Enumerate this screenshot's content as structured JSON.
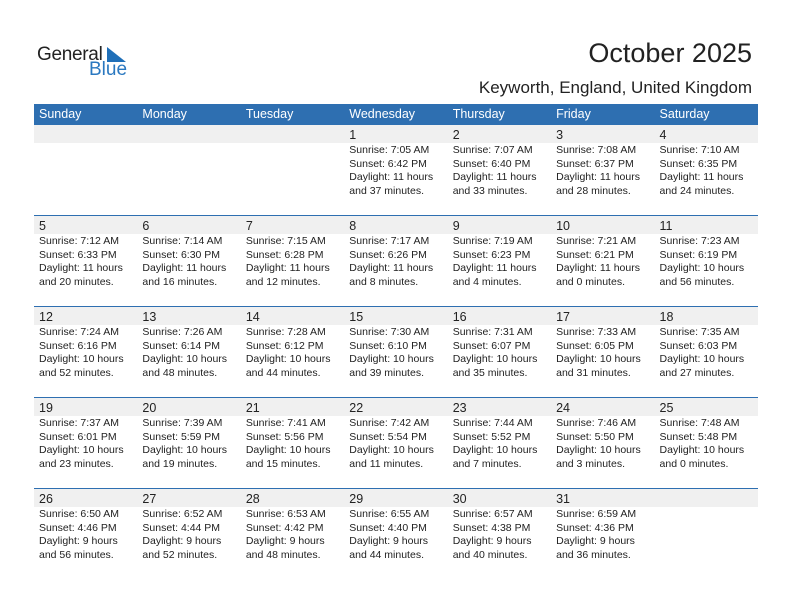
{
  "logo": {
    "general": "General",
    "blue": "Blue"
  },
  "title": "October 2025",
  "location": "Keyworth, England, United Kingdom",
  "weekdays": [
    "Sunday",
    "Monday",
    "Tuesday",
    "Wednesday",
    "Thursday",
    "Friday",
    "Saturday"
  ],
  "colors": {
    "header": "#2e6fb1",
    "strip": "#f0f0f0"
  },
  "weeks": [
    [
      null,
      null,
      null,
      {
        "day": "1",
        "sunrise": "Sunrise: 7:05 AM",
        "sunset": "Sunset: 6:42 PM",
        "daylight": "Daylight: 11 hours",
        "minutes": "and 37 minutes."
      },
      {
        "day": "2",
        "sunrise": "Sunrise: 7:07 AM",
        "sunset": "Sunset: 6:40 PM",
        "daylight": "Daylight: 11 hours",
        "minutes": "and 33 minutes."
      },
      {
        "day": "3",
        "sunrise": "Sunrise: 7:08 AM",
        "sunset": "Sunset: 6:37 PM",
        "daylight": "Daylight: 11 hours",
        "minutes": "and 28 minutes."
      },
      {
        "day": "4",
        "sunrise": "Sunrise: 7:10 AM",
        "sunset": "Sunset: 6:35 PM",
        "daylight": "Daylight: 11 hours",
        "minutes": "and 24 minutes."
      }
    ],
    [
      {
        "day": "5",
        "sunrise": "Sunrise: 7:12 AM",
        "sunset": "Sunset: 6:33 PM",
        "daylight": "Daylight: 11 hours",
        "minutes": "and 20 minutes."
      },
      {
        "day": "6",
        "sunrise": "Sunrise: 7:14 AM",
        "sunset": "Sunset: 6:30 PM",
        "daylight": "Daylight: 11 hours",
        "minutes": "and 16 minutes."
      },
      {
        "day": "7",
        "sunrise": "Sunrise: 7:15 AM",
        "sunset": "Sunset: 6:28 PM",
        "daylight": "Daylight: 11 hours",
        "minutes": "and 12 minutes."
      },
      {
        "day": "8",
        "sunrise": "Sunrise: 7:17 AM",
        "sunset": "Sunset: 6:26 PM",
        "daylight": "Daylight: 11 hours",
        "minutes": "and 8 minutes."
      },
      {
        "day": "9",
        "sunrise": "Sunrise: 7:19 AM",
        "sunset": "Sunset: 6:23 PM",
        "daylight": "Daylight: 11 hours",
        "minutes": "and 4 minutes."
      },
      {
        "day": "10",
        "sunrise": "Sunrise: 7:21 AM",
        "sunset": "Sunset: 6:21 PM",
        "daylight": "Daylight: 11 hours",
        "minutes": "and 0 minutes."
      },
      {
        "day": "11",
        "sunrise": "Sunrise: 7:23 AM",
        "sunset": "Sunset: 6:19 PM",
        "daylight": "Daylight: 10 hours",
        "minutes": "and 56 minutes."
      }
    ],
    [
      {
        "day": "12",
        "sunrise": "Sunrise: 7:24 AM",
        "sunset": "Sunset: 6:16 PM",
        "daylight": "Daylight: 10 hours",
        "minutes": "and 52 minutes."
      },
      {
        "day": "13",
        "sunrise": "Sunrise: 7:26 AM",
        "sunset": "Sunset: 6:14 PM",
        "daylight": "Daylight: 10 hours",
        "minutes": "and 48 minutes."
      },
      {
        "day": "14",
        "sunrise": "Sunrise: 7:28 AM",
        "sunset": "Sunset: 6:12 PM",
        "daylight": "Daylight: 10 hours",
        "minutes": "and 44 minutes."
      },
      {
        "day": "15",
        "sunrise": "Sunrise: 7:30 AM",
        "sunset": "Sunset: 6:10 PM",
        "daylight": "Daylight: 10 hours",
        "minutes": "and 39 minutes."
      },
      {
        "day": "16",
        "sunrise": "Sunrise: 7:31 AM",
        "sunset": "Sunset: 6:07 PM",
        "daylight": "Daylight: 10 hours",
        "minutes": "and 35 minutes."
      },
      {
        "day": "17",
        "sunrise": "Sunrise: 7:33 AM",
        "sunset": "Sunset: 6:05 PM",
        "daylight": "Daylight: 10 hours",
        "minutes": "and 31 minutes."
      },
      {
        "day": "18",
        "sunrise": "Sunrise: 7:35 AM",
        "sunset": "Sunset: 6:03 PM",
        "daylight": "Daylight: 10 hours",
        "minutes": "and 27 minutes."
      }
    ],
    [
      {
        "day": "19",
        "sunrise": "Sunrise: 7:37 AM",
        "sunset": "Sunset: 6:01 PM",
        "daylight": "Daylight: 10 hours",
        "minutes": "and 23 minutes."
      },
      {
        "day": "20",
        "sunrise": "Sunrise: 7:39 AM",
        "sunset": "Sunset: 5:59 PM",
        "daylight": "Daylight: 10 hours",
        "minutes": "and 19 minutes."
      },
      {
        "day": "21",
        "sunrise": "Sunrise: 7:41 AM",
        "sunset": "Sunset: 5:56 PM",
        "daylight": "Daylight: 10 hours",
        "minutes": "and 15 minutes."
      },
      {
        "day": "22",
        "sunrise": "Sunrise: 7:42 AM",
        "sunset": "Sunset: 5:54 PM",
        "daylight": "Daylight: 10 hours",
        "minutes": "and 11 minutes."
      },
      {
        "day": "23",
        "sunrise": "Sunrise: 7:44 AM",
        "sunset": "Sunset: 5:52 PM",
        "daylight": "Daylight: 10 hours",
        "minutes": "and 7 minutes."
      },
      {
        "day": "24",
        "sunrise": "Sunrise: 7:46 AM",
        "sunset": "Sunset: 5:50 PM",
        "daylight": "Daylight: 10 hours",
        "minutes": "and 3 minutes."
      },
      {
        "day": "25",
        "sunrise": "Sunrise: 7:48 AM",
        "sunset": "Sunset: 5:48 PM",
        "daylight": "Daylight: 10 hours",
        "minutes": "and 0 minutes."
      }
    ],
    [
      {
        "day": "26",
        "sunrise": "Sunrise: 6:50 AM",
        "sunset": "Sunset: 4:46 PM",
        "daylight": "Daylight: 9 hours",
        "minutes": "and 56 minutes."
      },
      {
        "day": "27",
        "sunrise": "Sunrise: 6:52 AM",
        "sunset": "Sunset: 4:44 PM",
        "daylight": "Daylight: 9 hours",
        "minutes": "and 52 minutes."
      },
      {
        "day": "28",
        "sunrise": "Sunrise: 6:53 AM",
        "sunset": "Sunset: 4:42 PM",
        "daylight": "Daylight: 9 hours",
        "minutes": "and 48 minutes."
      },
      {
        "day": "29",
        "sunrise": "Sunrise: 6:55 AM",
        "sunset": "Sunset: 4:40 PM",
        "daylight": "Daylight: 9 hours",
        "minutes": "and 44 minutes."
      },
      {
        "day": "30",
        "sunrise": "Sunrise: 6:57 AM",
        "sunset": "Sunset: 4:38 PM",
        "daylight": "Daylight: 9 hours",
        "minutes": "and 40 minutes."
      },
      {
        "day": "31",
        "sunrise": "Sunrise: 6:59 AM",
        "sunset": "Sunset: 4:36 PM",
        "daylight": "Daylight: 9 hours",
        "minutes": "and 36 minutes."
      },
      null
    ]
  ]
}
